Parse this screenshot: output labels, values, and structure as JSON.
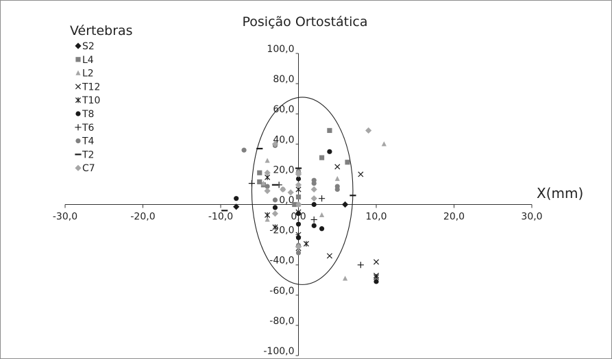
{
  "chart_data": {
    "type": "scatter",
    "title": "Posição Ortostática",
    "xlabel": "X(mm)",
    "ylabel": "",
    "legend_title": "Vértebras",
    "legend_position": "top-left",
    "grid": false,
    "xlim": [
      -30,
      30
    ],
    "ylim": [
      -100,
      100
    ],
    "x_ticks": [
      -30,
      -20,
      -10,
      0,
      10,
      20,
      30
    ],
    "y_ticks": [
      -100,
      -80,
      -60,
      -40,
      -20,
      0,
      20,
      40,
      60,
      80,
      100
    ],
    "x_tick_labels": [
      "-30,0",
      "-20,0",
      "-10,0",
      "0,0",
      "10,0",
      "20,0",
      "30,0"
    ],
    "y_tick_labels": [
      "-100,0",
      "-80,0",
      "-60,0",
      "-40,0",
      "-20,0",
      "0,0",
      "20,0",
      "40,0",
      "60,0",
      "80,0",
      "100,0"
    ],
    "ellipse": {
      "cx": 0.5,
      "cy": 9,
      "rx": 6.5,
      "ry": 62
    },
    "series": [
      {
        "name": "S2",
        "marker": "diamond",
        "color": "#1a1a1a",
        "points": [
          [
            -8.0,
            -1.5
          ],
          [
            6.0,
            0.0
          ]
        ]
      },
      {
        "name": "L4",
        "marker": "square",
        "color": "#808080",
        "points": [
          [
            4.0,
            49.0
          ],
          [
            6.3,
            28.0
          ],
          [
            3.0,
            31.0
          ],
          [
            -5.0,
            21.0
          ],
          [
            -5.0,
            15.0
          ],
          [
            -4.5,
            13.0
          ],
          [
            -0.5,
            0.0
          ],
          [
            0.0,
            5.0
          ]
        ]
      },
      {
        "name": "L2",
        "marker": "triangle",
        "color": "#a6a6a6",
        "points": [
          [
            11.0,
            40.0
          ],
          [
            -4.0,
            29.0
          ],
          [
            5.0,
            17.0
          ],
          [
            6.0,
            -49.0
          ],
          [
            3.0,
            -7.0
          ],
          [
            0.0,
            0.0
          ],
          [
            -4.0,
            -10.0
          ],
          [
            -4.5,
            14.0
          ]
        ]
      },
      {
        "name": "T12",
        "marker": "x",
        "color": "#1a1a1a",
        "points": [
          [
            8.0,
            20.0
          ],
          [
            5.0,
            25.0
          ],
          [
            4.0,
            -34.0
          ],
          [
            10.0,
            -38.0
          ],
          [
            10.0,
            -47.0
          ],
          [
            0.0,
            -5.0
          ],
          [
            0.0,
            -29.0
          ]
        ]
      },
      {
        "name": "T10",
        "marker": "star",
        "color": "#1a1a1a",
        "points": [
          [
            -4.0,
            18.0
          ],
          [
            -4.0,
            -7.0
          ],
          [
            -3.0,
            -15.0
          ],
          [
            1.0,
            -26.0
          ],
          [
            10.0,
            -48.0
          ],
          [
            0.0,
            10.0
          ],
          [
            0.0,
            -20.0
          ]
        ]
      },
      {
        "name": "T8",
        "marker": "circle",
        "color": "#1a1a1a",
        "points": [
          [
            -8.0,
            4.0
          ],
          [
            4.0,
            35.0
          ],
          [
            0.0,
            17.0
          ],
          [
            2.0,
            -14.0
          ],
          [
            3.0,
            -16.0
          ],
          [
            0.0,
            -13.0
          ],
          [
            0.0,
            -22.0
          ],
          [
            2.0,
            0.0
          ],
          [
            -3.0,
            -2.0
          ],
          [
            10.0,
            -51.0
          ],
          [
            0.0,
            -6.0
          ]
        ]
      },
      {
        "name": "T6",
        "marker": "plus",
        "color": "#1a1a1a",
        "points": [
          [
            -6.0,
            14.0
          ],
          [
            3.0,
            4.0
          ],
          [
            2.0,
            -10.0
          ],
          [
            8.0,
            -40.0
          ],
          [
            0.0,
            0.0
          ],
          [
            -2.5,
            13.0
          ]
        ]
      },
      {
        "name": "T4",
        "marker": "circle",
        "color": "#808080",
        "points": [
          [
            -7.0,
            36.0
          ],
          [
            -3.0,
            39.0
          ],
          [
            2.0,
            16.0
          ],
          [
            2.0,
            14.0
          ],
          [
            5.0,
            12.0
          ],
          [
            5.0,
            10.0
          ],
          [
            0.0,
            22.0
          ],
          [
            -4.0,
            12.0
          ],
          [
            -3.0,
            3.0
          ],
          [
            0.0,
            -32.0
          ],
          [
            0.0,
            -27.0
          ],
          [
            -2.0,
            10.0
          ],
          [
            0.0,
            0.0
          ]
        ]
      },
      {
        "name": "T2",
        "marker": "dash",
        "color": "#1a1a1a",
        "points": [
          [
            -5.0,
            37.0
          ],
          [
            0.0,
            24.0
          ],
          [
            -3.0,
            13.0
          ],
          [
            -9.5,
            -4.0
          ],
          [
            7.0,
            6.0
          ]
        ]
      },
      {
        "name": "C7",
        "marker": "diamond",
        "color": "#a6a6a6",
        "points": [
          [
            9.0,
            49.0
          ],
          [
            -3.0,
            40.0
          ],
          [
            0.0,
            21.0
          ],
          [
            0.0,
            20.0
          ],
          [
            -4.0,
            21.0
          ],
          [
            2.0,
            10.0
          ],
          [
            0.0,
            13.0
          ],
          [
            -2.0,
            10.0
          ],
          [
            -4.0,
            9.0
          ],
          [
            -3.0,
            -6.0
          ],
          [
            0.0,
            -28.0
          ],
          [
            2.0,
            4.0
          ],
          [
            0.0,
            0.0
          ],
          [
            -1.0,
            8.0
          ]
        ]
      }
    ]
  }
}
